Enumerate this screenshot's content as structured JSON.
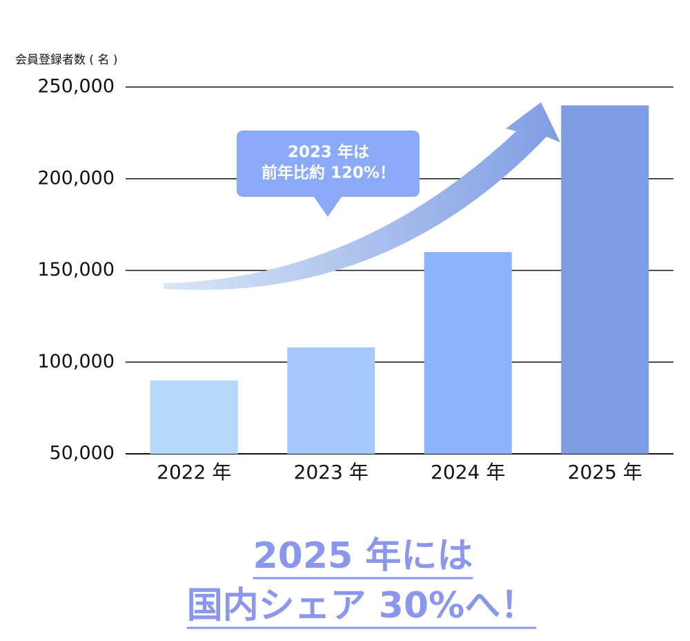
{
  "chart_data": {
    "type": "bar",
    "y_label": "会員登録者数 ( 名 )",
    "categories": [
      "2022 年",
      "2023 年",
      "2024 年",
      "2025 年"
    ],
    "values": [
      90000,
      108000,
      160000,
      240000
    ],
    "colors": [
      "#b3d9fd",
      "#a5c8fd",
      "#8db3fb",
      "#7f9de4"
    ],
    "ylim": [
      50000,
      250000
    ],
    "yticks": [
      {
        "value": 50000,
        "label": "50,000"
      },
      {
        "value": 100000,
        "label": "100,000"
      },
      {
        "value": 150000,
        "label": "150,000"
      },
      {
        "value": 200000,
        "label": "200,000"
      },
      {
        "value": 250000,
        "label": "250,000"
      }
    ],
    "grid": true,
    "annotation": [
      "2023 年は",
      "前年比約 120%！"
    ],
    "headline": [
      "2025 年には",
      "国内シェア 30%へ！"
    ]
  }
}
